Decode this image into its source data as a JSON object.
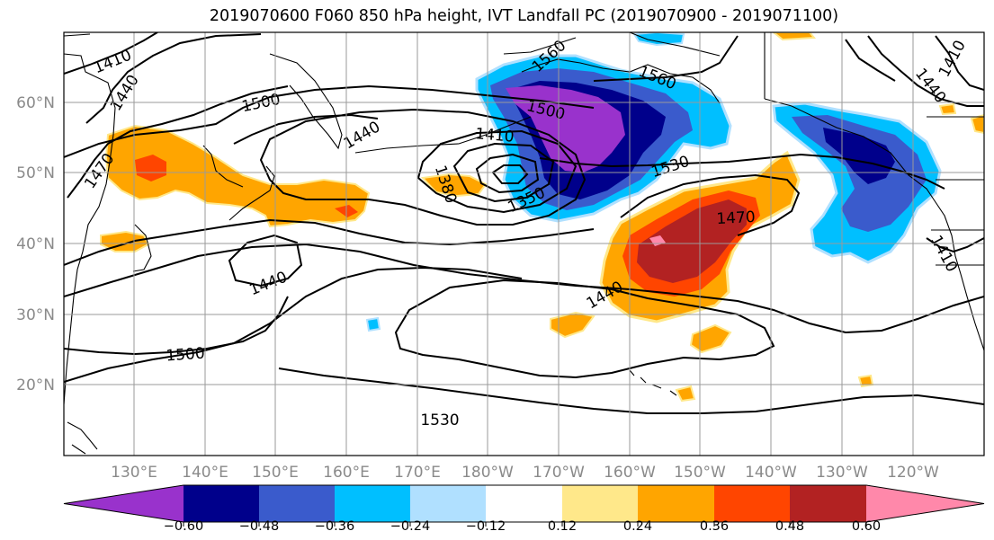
{
  "title": "2019070600 F060 850 hPa height, IVT Landfall PC (2019070900 - 2019071100)",
  "lat_labels": [
    "60°N",
    "50°N",
    "40°N",
    "30°N",
    "20°N"
  ],
  "lon_labels": [
    "130°E",
    "140°E",
    "150°E",
    "160°E",
    "170°E",
    "180°W",
    "170°W",
    "160°W",
    "150°W",
    "140°W",
    "130°W",
    "120°W"
  ],
  "colorbar": {
    "colors": [
      "#9932cc",
      "#00008b",
      "#3a5bcc",
      "#00bfff",
      "#b0e0ff",
      "#ffffff",
      "#ffe88a",
      "#ffa500",
      "#ff4500",
      "#b22222",
      "#ff88aa"
    ],
    "tick_labels": [
      "-0.60",
      "-0.48",
      "-0.36",
      "-0.24",
      "-0.12",
      "0.12",
      "0.24",
      "0.36",
      "0.48",
      "0.60"
    ]
  },
  "contour_labels": [
    {
      "text": "1410",
      "angle": -22
    },
    {
      "text": "1440",
      "angle": -58
    },
    {
      "text": "1500",
      "angle": -12
    },
    {
      "text": "1440",
      "angle": -30
    },
    {
      "text": "1470",
      "angle": -55
    },
    {
      "text": "1410",
      "angle": 5
    },
    {
      "text": "1380",
      "angle": 72
    },
    {
      "text": "1350",
      "angle": -25
    },
    {
      "text": "1500",
      "angle": 14
    },
    {
      "text": "1560",
      "angle": -42
    },
    {
      "text": "1530",
      "angle": -18
    },
    {
      "text": "1470",
      "angle": -3
    },
    {
      "text": "1440",
      "angle": -22
    },
    {
      "text": "1440",
      "angle": -30
    },
    {
      "text": "1560",
      "angle": 22
    },
    {
      "text": "1500",
      "angle": -4
    },
    {
      "text": "1530",
      "angle": 0
    },
    {
      "text": "1410",
      "angle": 62
    },
    {
      "text": "1440",
      "angle": 52
    },
    {
      "text": "1410",
      "angle": -62
    }
  ]
}
